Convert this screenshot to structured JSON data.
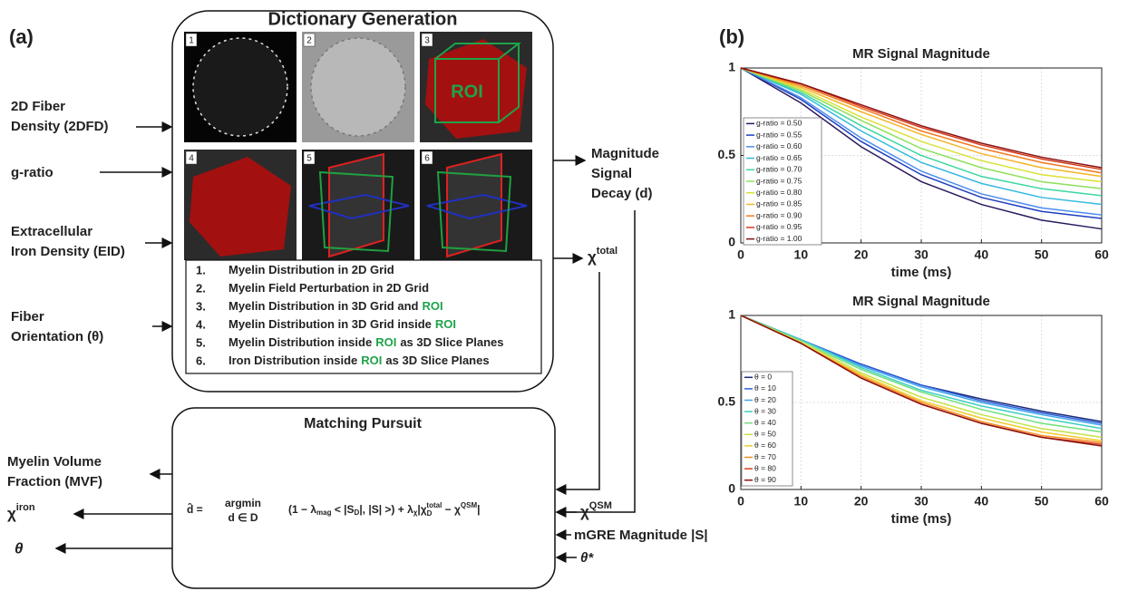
{
  "panel_a": {
    "label": "(a)",
    "dictionary_title": "Dictionary Generation",
    "tiles": [
      "1",
      "2",
      "3",
      "4",
      "5",
      "6"
    ],
    "roi_tag": "ROI",
    "inputs": [
      [
        "2D Fiber",
        "Density (2DFD)"
      ],
      [
        "g-ratio"
      ],
      [
        "Extracellular",
        "Iron Density (EID)"
      ],
      [
        "Fiber",
        "Orientation (θ)"
      ]
    ],
    "steps": [
      {
        "num": "1.",
        "text": "Myelin Distribution in 2D Grid"
      },
      {
        "num": "2.",
        "text": "Myelin Field Perturbation in 2D Grid"
      },
      {
        "num": "3.",
        "text": "Myelin Distribution in 3D Grid and",
        "roi": "ROI"
      },
      {
        "num": "4.",
        "text": "Myelin Distribution in 3D Grid inside",
        "roi": "ROI"
      },
      {
        "num": "5.",
        "text": "Myelin Distribution inside",
        "roi": "ROI",
        "rest": "as 3D Slice Planes"
      },
      {
        "num": "6.",
        "text": "Iron Distribution inside",
        "roi": "ROI",
        "rest": "as 3D Slice Planes"
      }
    ],
    "dict_outputs": {
      "magnitude": [
        "Magnitude",
        "Signal",
        "Decay (d)"
      ],
      "chi_total": {
        "base": "χ",
        "sup": "total"
      }
    },
    "matching_title": "Matching Pursuit",
    "formula": {
      "lhs": "d̂ =",
      "op": "argmin",
      "under": "d ∈ D",
      "t1": "(1 − λ",
      "s1": "mag",
      "t2": " < |S",
      "s2": "D",
      "t3": "|, |S| >) + λ",
      "s3": "χ",
      "t4": "|χ",
      "s4": "D",
      "p4": "total",
      "t5": " − χ",
      "p5": "QSM",
      "t6": "|"
    },
    "outputs": {
      "mvf": [
        "Myelin Volume",
        "Fraction (MVF)"
      ],
      "chi_iron": {
        "base": "χ",
        "sup": "iron"
      },
      "theta": "θ"
    },
    "mp_inputs": {
      "chi_qsm": {
        "base": "χ",
        "sup": "QSM"
      },
      "mgre": "mGRE Magnitude |S|",
      "theta_star": "θ*"
    }
  },
  "panel_b_label": "(b)",
  "chart_data": [
    {
      "type": "line",
      "title": "MR Signal Magnitude",
      "xlabel": "time (ms)",
      "x": [
        0,
        10,
        20,
        30,
        40,
        50,
        60
      ],
      "xlim": [
        0,
        60
      ],
      "xticks": [
        0,
        10,
        20,
        30,
        40,
        50,
        60
      ],
      "ylim": [
        0,
        1
      ],
      "yticks": [
        0,
        0.5,
        1
      ],
      "grid": true,
      "legend": "left",
      "series": [
        {
          "name": "g-ratio = 0.50",
          "color": "#2b1a5e",
          "values": [
            1,
            0.8,
            0.55,
            0.35,
            0.22,
            0.13,
            0.08
          ]
        },
        {
          "name": "g-ratio = 0.55",
          "color": "#1f3fbf",
          "values": [
            1,
            0.82,
            0.58,
            0.39,
            0.26,
            0.18,
            0.14
          ]
        },
        {
          "name": "g-ratio = 0.60",
          "color": "#4c8df0",
          "values": [
            1,
            0.83,
            0.6,
            0.41,
            0.28,
            0.2,
            0.16
          ]
        },
        {
          "name": "g-ratio = 0.65",
          "color": "#35b9e0",
          "values": [
            1,
            0.85,
            0.64,
            0.46,
            0.34,
            0.26,
            0.22
          ]
        },
        {
          "name": "g-ratio = 0.70",
          "color": "#3dd6a0",
          "values": [
            1,
            0.86,
            0.67,
            0.5,
            0.38,
            0.31,
            0.27
          ]
        },
        {
          "name": "g-ratio = 0.75",
          "color": "#8fe05a",
          "values": [
            1,
            0.87,
            0.7,
            0.54,
            0.43,
            0.35,
            0.31
          ]
        },
        {
          "name": "g-ratio = 0.80",
          "color": "#d8e23a",
          "values": [
            1,
            0.88,
            0.72,
            0.58,
            0.47,
            0.39,
            0.35
          ]
        },
        {
          "name": "g-ratio = 0.85",
          "color": "#f5b52a",
          "values": [
            1,
            0.89,
            0.75,
            0.62,
            0.51,
            0.43,
            0.38
          ]
        },
        {
          "name": "g-ratio = 0.90",
          "color": "#f07a1e",
          "values": [
            1,
            0.9,
            0.77,
            0.64,
            0.54,
            0.46,
            0.4
          ]
        },
        {
          "name": "g-ratio = 0.95",
          "color": "#d63a1a",
          "values": [
            1,
            0.91,
            0.78,
            0.66,
            0.56,
            0.48,
            0.42
          ]
        },
        {
          "name": "g-ratio = 1.00",
          "color": "#8b1010",
          "values": [
            1,
            0.91,
            0.79,
            0.67,
            0.57,
            0.49,
            0.43
          ]
        }
      ]
    },
    {
      "type": "line",
      "title": "MR Signal Magnitude",
      "xlabel": "time (ms)",
      "x": [
        0,
        10,
        20,
        30,
        40,
        50,
        60
      ],
      "xlim": [
        0,
        60
      ],
      "xticks": [
        0,
        10,
        20,
        30,
        40,
        50,
        60
      ],
      "ylim": [
        0,
        1
      ],
      "yticks": [
        0,
        0.5,
        1
      ],
      "grid": true,
      "legend": "left",
      "series": [
        {
          "name": "θ = 0",
          "color": "#1a2a7a",
          "values": [
            1,
            0.86,
            0.72,
            0.6,
            0.52,
            0.45,
            0.39
          ]
        },
        {
          "name": "θ = 10",
          "color": "#2c5fd8",
          "values": [
            1,
            0.86,
            0.72,
            0.6,
            0.51,
            0.44,
            0.38
          ]
        },
        {
          "name": "θ = 20",
          "color": "#3fa3ee",
          "values": [
            1,
            0.86,
            0.71,
            0.59,
            0.5,
            0.43,
            0.37
          ]
        },
        {
          "name": "θ = 30",
          "color": "#3dcfc4",
          "values": [
            1,
            0.86,
            0.7,
            0.57,
            0.48,
            0.41,
            0.35
          ]
        },
        {
          "name": "θ = 40",
          "color": "#6fe07a",
          "values": [
            1,
            0.85,
            0.69,
            0.56,
            0.46,
            0.38,
            0.33
          ]
        },
        {
          "name": "θ = 50",
          "color": "#c4e244",
          "values": [
            1,
            0.85,
            0.67,
            0.53,
            0.43,
            0.35,
            0.3
          ]
        },
        {
          "name": "θ = 60",
          "color": "#f4cc2c",
          "values": [
            1,
            0.84,
            0.66,
            0.51,
            0.41,
            0.33,
            0.28
          ]
        },
        {
          "name": "θ = 70",
          "color": "#f58c22",
          "values": [
            1,
            0.84,
            0.65,
            0.5,
            0.39,
            0.31,
            0.27
          ]
        },
        {
          "name": "θ = 80",
          "color": "#d9431a",
          "values": [
            1,
            0.84,
            0.64,
            0.49,
            0.38,
            0.3,
            0.26
          ]
        },
        {
          "name": "θ = 90",
          "color": "#8b1010",
          "values": [
            1,
            0.84,
            0.64,
            0.49,
            0.38,
            0.3,
            0.25
          ]
        }
      ]
    }
  ]
}
